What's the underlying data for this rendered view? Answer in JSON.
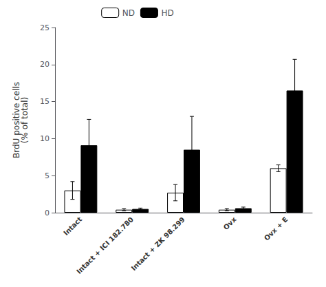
{
  "chart_data": {
    "type": "bar",
    "categories": [
      "Intact",
      "Intact + ICI 182.780",
      "Intact + ZK 98.299",
      "Ovx",
      "Ovx + E"
    ],
    "series": [
      {
        "name": "ND",
        "color": "#ffffff",
        "values": [
          3.0,
          0.4,
          2.7,
          0.4,
          6.0
        ],
        "errors": [
          1.2,
          0.15,
          1.1,
          0.15,
          0.45
        ]
      },
      {
        "name": "HD",
        "color": "#000000",
        "values": [
          9.1,
          0.5,
          8.5,
          0.6,
          16.5
        ],
        "errors": [
          3.5,
          0.12,
          4.5,
          0.15,
          4.2
        ]
      }
    ],
    "ylabel": "BrdU positive cells\n(% of total)",
    "ylim": [
      0,
      25
    ],
    "yticks": [
      0,
      5,
      10,
      15,
      20,
      25
    ],
    "grid": false,
    "legend": "upper left"
  }
}
